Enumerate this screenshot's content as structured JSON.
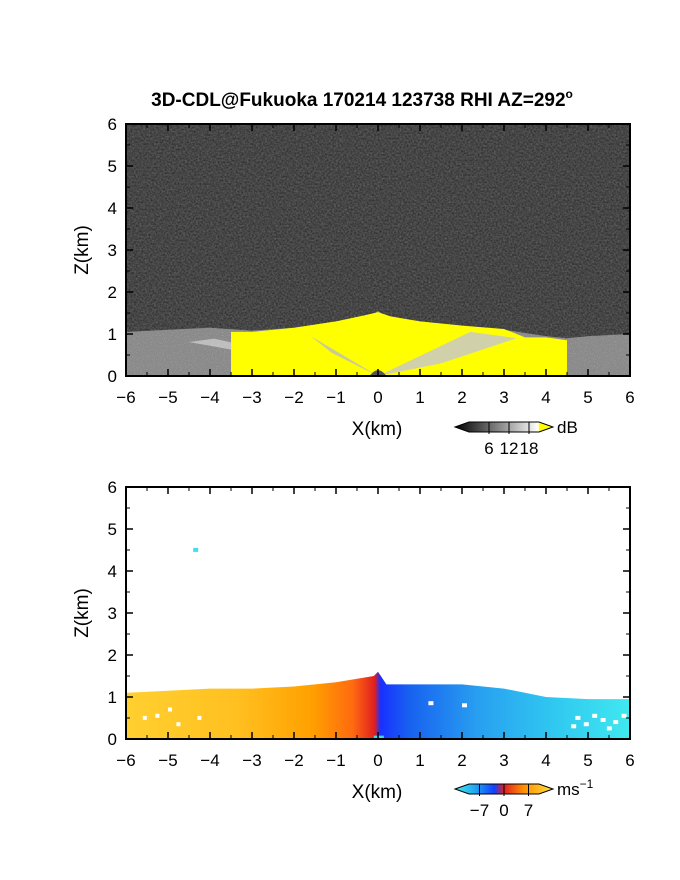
{
  "title": "3D-CDL@Fukuoka 170214 123738 RHI AZ=292",
  "title_superscript": "o",
  "chart_data": [
    {
      "type": "heatmap",
      "name": "reflectivity-panel",
      "xlabel": "X(km)",
      "ylabel": "Z(km)",
      "xlim": [
        -6,
        6
      ],
      "ylim": [
        0,
        6
      ],
      "x_ticks": [
        "−6",
        "−5",
        "−4",
        "−3",
        "−2",
        "−1",
        "0",
        "1",
        "2",
        "3",
        "4",
        "5",
        "6"
      ],
      "y_ticks": [
        "0",
        "1",
        "2",
        "3",
        "4",
        "5",
        "6"
      ],
      "grid": false,
      "background": "dark gray noise (~0–6 dB)",
      "colorbar": {
        "unit": "dB",
        "ticks": [
          "6",
          "12",
          "18"
        ],
        "range": [
          0,
          21
        ],
        "colors": [
          "#000000",
          "#ffffff",
          "#ffff00"
        ]
      },
      "regions": [
        {
          "label": "echo layer top",
          "x": [
            -6,
            -5,
            -4,
            -3,
            -2,
            -1,
            -0.2,
            0,
            0.2,
            1,
            2,
            3,
            4,
            4.5,
            5,
            6
          ],
          "z": [
            1.05,
            1.1,
            1.15,
            1.08,
            1.15,
            1.3,
            1.4,
            1.55,
            1.4,
            1.3,
            1.2,
            1.1,
            0.95,
            0.9,
            0.95,
            1.0
          ]
        },
        {
          "label": "yellow saturated core top",
          "x": [
            -3.5,
            -3,
            -2,
            -1,
            -0.3,
            0,
            0.3,
            1,
            2,
            3,
            3.5,
            4,
            4.5
          ],
          "z": [
            1.05,
            1.05,
            1.15,
            1.3,
            1.45,
            1.52,
            1.42,
            1.3,
            1.2,
            1.12,
            0.92,
            0.92,
            0.85
          ]
        }
      ]
    },
    {
      "type": "heatmap",
      "name": "doppler-velocity-panel",
      "xlabel": "X(km)",
      "ylabel": "Z(km)",
      "xlim": [
        -6,
        6
      ],
      "ylim": [
        0,
        6
      ],
      "x_ticks": [
        "−6",
        "−5",
        "−4",
        "−3",
        "−2",
        "−1",
        "0",
        "1",
        "2",
        "3",
        "4",
        "5",
        "6"
      ],
      "y_ticks": [
        "0",
        "1",
        "2",
        "3",
        "4",
        "5",
        "6"
      ],
      "grid": false,
      "colorbar": {
        "unit": "ms",
        "unit_superscript": "−1",
        "ticks": [
          "−7",
          "0",
          "7"
        ],
        "range": [
          -10,
          10
        ],
        "colors": [
          "#22e0f0",
          "#1040ff",
          "#e02020",
          "#ffa000",
          "#ffe040"
        ]
      },
      "regions": [
        {
          "label": "velocity layer top",
          "x": [
            -6,
            -5,
            -4,
            -3,
            -2,
            -1,
            -0.1,
            0,
            0.2,
            1,
            2,
            3,
            4,
            5,
            6
          ],
          "z": [
            1.1,
            1.15,
            1.2,
            1.2,
            1.25,
            1.35,
            1.5,
            1.6,
            1.3,
            1.3,
            1.3,
            1.2,
            1.0,
            0.95,
            0.95
          ]
        },
        {
          "label": "velocity at left edge",
          "value_ms": 7
        },
        {
          "label": "velocity near x=0 left side",
          "value_ms": 1
        },
        {
          "label": "velocity near x=0 right side",
          "value_ms": -4
        },
        {
          "label": "velocity at right edge",
          "value_ms": -8
        },
        {
          "label": "isolated point",
          "x": -4.4,
          "z": 4.55,
          "value_ms": -8
        }
      ]
    }
  ]
}
